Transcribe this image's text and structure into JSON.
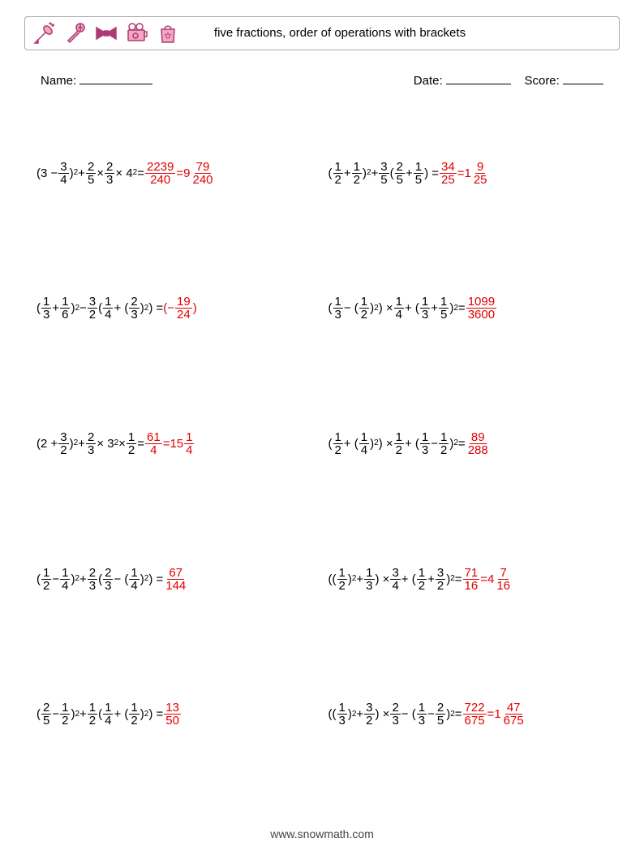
{
  "header": {
    "title": "five fractions, order of operations with brackets",
    "icons": [
      "champagne-icon",
      "microphone-icon",
      "bowtie-icon",
      "camera-icon",
      "bag-icon"
    ]
  },
  "info": {
    "name_label": "Name:",
    "date_label": "Date:",
    "score_label": "Score:"
  },
  "style": {
    "answer_color": "#e00000",
    "text_color": "#000000",
    "border_color": "#aaaaaa",
    "background": "#ffffff",
    "font_size": 15,
    "icon_outline": "#ad3b72",
    "icon_accent": "#f4a6c4"
  },
  "problems": [
    {
      "expr": [
        [
          "txt",
          "(3 − "
        ],
        [
          "frac",
          "3",
          "4"
        ],
        [
          "txt",
          ")"
        ],
        [
          "sup",
          "2"
        ],
        [
          "txt",
          " + "
        ],
        [
          "frac",
          "2",
          "5"
        ],
        [
          "txt",
          " × "
        ],
        [
          "frac",
          "2",
          "3"
        ],
        [
          "txt",
          " × 4"
        ],
        [
          "sup",
          "2"
        ],
        [
          "txt",
          " = "
        ]
      ],
      "ans": [
        [
          "frac",
          "2239",
          "240"
        ],
        [
          "txt",
          " = "
        ],
        [
          "mixed",
          "9",
          "79",
          "240"
        ]
      ]
    },
    {
      "expr": [
        [
          "txt",
          "("
        ],
        [
          "frac",
          "1",
          "2"
        ],
        [
          "txt",
          " + "
        ],
        [
          "frac",
          "1",
          "2"
        ],
        [
          "txt",
          ")"
        ],
        [
          "sup",
          "2"
        ],
        [
          "txt",
          " + "
        ],
        [
          "frac",
          "3",
          "5"
        ],
        [
          "txt",
          "("
        ],
        [
          "frac",
          "2",
          "5"
        ],
        [
          "txt",
          " + "
        ],
        [
          "frac",
          "1",
          "5"
        ],
        [
          "txt",
          ") = "
        ]
      ],
      "ans": [
        [
          "frac",
          "34",
          "25"
        ],
        [
          "txt",
          " = "
        ],
        [
          "mixed",
          "1",
          "9",
          "25"
        ]
      ]
    },
    {
      "expr": [
        [
          "txt",
          "("
        ],
        [
          "frac",
          "1",
          "3"
        ],
        [
          "txt",
          " + "
        ],
        [
          "frac",
          "1",
          "6"
        ],
        [
          "txt",
          ")"
        ],
        [
          "sup",
          "2"
        ],
        [
          "txt",
          " − "
        ],
        [
          "frac",
          "3",
          "2"
        ],
        [
          "txt",
          "("
        ],
        [
          "frac",
          "1",
          "4"
        ],
        [
          "txt",
          " + ("
        ],
        [
          "frac",
          "2",
          "3"
        ],
        [
          "txt",
          ")"
        ],
        [
          "sup",
          "2"
        ],
        [
          "txt",
          ") = "
        ]
      ],
      "ans": [
        [
          "txt",
          "(−"
        ],
        [
          "frac",
          "19",
          "24"
        ],
        [
          "txt",
          ")"
        ]
      ]
    },
    {
      "expr": [
        [
          "txt",
          "("
        ],
        [
          "frac",
          "1",
          "3"
        ],
        [
          "txt",
          " − ("
        ],
        [
          "frac",
          "1",
          "2"
        ],
        [
          "txt",
          ")"
        ],
        [
          "sup",
          "2"
        ],
        [
          "txt",
          ") × "
        ],
        [
          "frac",
          "1",
          "4"
        ],
        [
          "txt",
          " + ("
        ],
        [
          "frac",
          "1",
          "3"
        ],
        [
          "txt",
          " + "
        ],
        [
          "frac",
          "1",
          "5"
        ],
        [
          "txt",
          ")"
        ],
        [
          "sup",
          "2"
        ],
        [
          "txt",
          " = "
        ]
      ],
      "ans": [
        [
          "frac",
          "1099",
          "3600"
        ]
      ]
    },
    {
      "expr": [
        [
          "txt",
          "(2 + "
        ],
        [
          "frac",
          "3",
          "2"
        ],
        [
          "txt",
          ")"
        ],
        [
          "sup",
          "2"
        ],
        [
          "txt",
          " + "
        ],
        [
          "frac",
          "2",
          "3"
        ],
        [
          "txt",
          " × 3"
        ],
        [
          "sup",
          "2"
        ],
        [
          "txt",
          " × "
        ],
        [
          "frac",
          "1",
          "2"
        ],
        [
          "txt",
          " = "
        ]
      ],
      "ans": [
        [
          "frac",
          "61",
          "4"
        ],
        [
          "txt",
          " = "
        ],
        [
          "mixed",
          "15",
          "1",
          "4"
        ]
      ]
    },
    {
      "expr": [
        [
          "txt",
          "("
        ],
        [
          "frac",
          "1",
          "2"
        ],
        [
          "txt",
          " + ("
        ],
        [
          "frac",
          "1",
          "4"
        ],
        [
          "txt",
          ")"
        ],
        [
          "sup",
          "2"
        ],
        [
          "txt",
          ") × "
        ],
        [
          "frac",
          "1",
          "2"
        ],
        [
          "txt",
          " + ("
        ],
        [
          "frac",
          "1",
          "3"
        ],
        [
          "txt",
          " − "
        ],
        [
          "frac",
          "1",
          "2"
        ],
        [
          "txt",
          ")"
        ],
        [
          "sup",
          "2"
        ],
        [
          "txt",
          " = "
        ]
      ],
      "ans": [
        [
          "frac",
          "89",
          "288"
        ]
      ]
    },
    {
      "expr": [
        [
          "txt",
          "("
        ],
        [
          "frac",
          "1",
          "2"
        ],
        [
          "txt",
          " − "
        ],
        [
          "frac",
          "1",
          "4"
        ],
        [
          "txt",
          ")"
        ],
        [
          "sup",
          "2"
        ],
        [
          "txt",
          " + "
        ],
        [
          "frac",
          "2",
          "3"
        ],
        [
          "txt",
          "("
        ],
        [
          "frac",
          "2",
          "3"
        ],
        [
          "txt",
          " − ("
        ],
        [
          "frac",
          "1",
          "4"
        ],
        [
          "txt",
          ")"
        ],
        [
          "sup",
          "2"
        ],
        [
          "txt",
          ") = "
        ]
      ],
      "ans": [
        [
          "frac",
          "67",
          "144"
        ]
      ]
    },
    {
      "expr": [
        [
          "txt",
          "(("
        ],
        [
          "frac",
          "1",
          "2"
        ],
        [
          "txt",
          ")"
        ],
        [
          "sup",
          "2"
        ],
        [
          "txt",
          " + "
        ],
        [
          "frac",
          "1",
          "3"
        ],
        [
          "txt",
          ") × "
        ],
        [
          "frac",
          "3",
          "4"
        ],
        [
          "txt",
          " + ("
        ],
        [
          "frac",
          "1",
          "2"
        ],
        [
          "txt",
          " + "
        ],
        [
          "frac",
          "3",
          "2"
        ],
        [
          "txt",
          ")"
        ],
        [
          "sup",
          "2"
        ],
        [
          "txt",
          " = "
        ]
      ],
      "ans": [
        [
          "frac",
          "71",
          "16"
        ],
        [
          "txt",
          " = "
        ],
        [
          "mixed",
          "4",
          "7",
          "16"
        ]
      ]
    },
    {
      "expr": [
        [
          "txt",
          "("
        ],
        [
          "frac",
          "2",
          "5"
        ],
        [
          "txt",
          " − "
        ],
        [
          "frac",
          "1",
          "2"
        ],
        [
          "txt",
          ")"
        ],
        [
          "sup",
          "2"
        ],
        [
          "txt",
          " + "
        ],
        [
          "frac",
          "1",
          "2"
        ],
        [
          "txt",
          "("
        ],
        [
          "frac",
          "1",
          "4"
        ],
        [
          "txt",
          " + ("
        ],
        [
          "frac",
          "1",
          "2"
        ],
        [
          "txt",
          ")"
        ],
        [
          "sup",
          "2"
        ],
        [
          "txt",
          ") = "
        ]
      ],
      "ans": [
        [
          "frac",
          "13",
          "50"
        ]
      ]
    },
    {
      "expr": [
        [
          "txt",
          "(("
        ],
        [
          "frac",
          "1",
          "3"
        ],
        [
          "txt",
          ")"
        ],
        [
          "sup",
          "2"
        ],
        [
          "txt",
          " + "
        ],
        [
          "frac",
          "3",
          "2"
        ],
        [
          "txt",
          ") × "
        ],
        [
          "frac",
          "2",
          "3"
        ],
        [
          "txt",
          " − ("
        ],
        [
          "frac",
          "1",
          "3"
        ],
        [
          "txt",
          " − "
        ],
        [
          "frac",
          "2",
          "5"
        ],
        [
          "txt",
          ")"
        ],
        [
          "sup",
          "2"
        ],
        [
          "txt",
          " = "
        ]
      ],
      "ans": [
        [
          "frac",
          "722",
          "675"
        ],
        [
          "txt",
          " = "
        ],
        [
          "mixed",
          "1",
          "47",
          "675"
        ]
      ]
    }
  ],
  "footer": {
    "text": "www.snowmath.com"
  }
}
